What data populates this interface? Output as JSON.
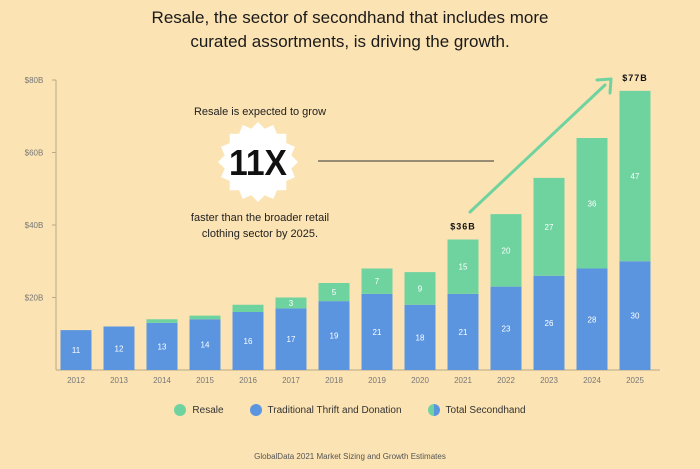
{
  "title_lines": [
    "Resale, the sector of secondhand that includes more",
    "curated assortments, is driving the growth."
  ],
  "callout": {
    "top_text": "Resale is expected to grow",
    "highlight": "11X",
    "bottom_lines": [
      "faster than the broader retail",
      "clothing sector by 2025."
    ]
  },
  "source": "GlobalData 2021 Market Sizing and Growth Estimates",
  "legend": {
    "resale": "Resale",
    "traditional": "Traditional Thrift and Donation",
    "total": "Total Secondhand"
  },
  "colors": {
    "resale": "#6fd3a0",
    "traditional": "#5b95e0",
    "background": "#fbe3b3",
    "arrow": "#6fd3a0"
  },
  "chart_data": {
    "type": "bar",
    "stacked": true,
    "categories": [
      "2012",
      "2013",
      "2014",
      "2015",
      "2016",
      "2017",
      "2018",
      "2019",
      "2020",
      "2021",
      "2022",
      "2023",
      "2024",
      "2025"
    ],
    "series": [
      {
        "name": "Traditional Thrift and Donation",
        "values": [
          11,
          12,
          13,
          14,
          16,
          17,
          19,
          21,
          18,
          21,
          23,
          26,
          28,
          30
        ],
        "labels": [
          "11",
          "12",
          "13",
          "14",
          "16",
          "17",
          "19",
          "21",
          "18",
          "21",
          "23",
          "26",
          "28",
          "30"
        ]
      },
      {
        "name": "Resale",
        "values": [
          0,
          0,
          1,
          1,
          2,
          3,
          5,
          7,
          9,
          15,
          20,
          27,
          36,
          47
        ],
        "labels": [
          "",
          "",
          "",
          "",
          "",
          "3",
          "5",
          "7",
          "9",
          "15",
          "20",
          "27",
          "36",
          "47"
        ]
      }
    ],
    "y_ticks": [
      "$80B",
      "$60B",
      "$40B",
      "$20B"
    ],
    "y_tick_values": [
      80,
      60,
      40,
      20
    ],
    "ylim": [
      0,
      80
    ],
    "annotations": [
      {
        "category": "2021",
        "text": "$36B"
      },
      {
        "category": "2025",
        "text": "$77B"
      }
    ]
  }
}
